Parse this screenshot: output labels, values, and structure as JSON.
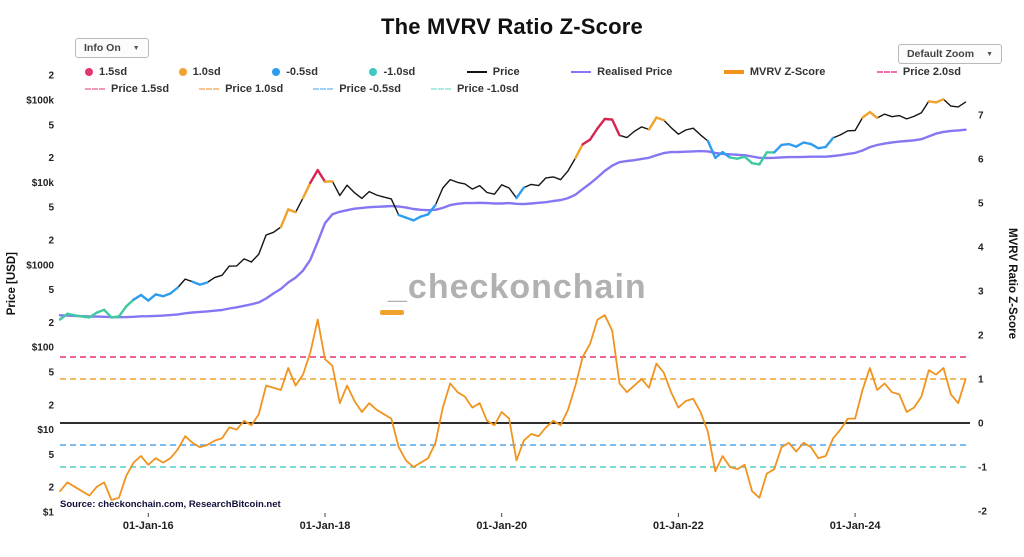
{
  "header": {
    "title": "The MVRV Ratio Z-Score",
    "info_dropdown": "Info On",
    "zoom_dropdown": "Default Zoom",
    "dropdown_arrow": "▼"
  },
  "axes": {
    "left_title": "Price [USD]",
    "right_title": "MVRV Ratio Z-Score",
    "left_ticks": [
      {
        "value": 200000,
        "label": "2"
      },
      {
        "value": 100000,
        "label": "$100k"
      },
      {
        "value": 50000,
        "label": "5"
      },
      {
        "value": 20000,
        "label": "2"
      },
      {
        "value": 10000,
        "label": "$10k"
      },
      {
        "value": 5000,
        "label": "5"
      },
      {
        "value": 2000,
        "label": "2"
      },
      {
        "value": 1000,
        "label": "$1000"
      },
      {
        "value": 500,
        "label": "5"
      },
      {
        "value": 200,
        "label": "2"
      },
      {
        "value": 100,
        "label": "$100"
      },
      {
        "value": 50,
        "label": "5"
      },
      {
        "value": 20,
        "label": "2"
      },
      {
        "value": 10,
        "label": "$10"
      },
      {
        "value": 5,
        "label": "5"
      },
      {
        "value": 2,
        "label": "2"
      },
      {
        "value": 1,
        "label": "$1"
      }
    ],
    "right_ticks": [
      {
        "value": 7,
        "label": "7"
      },
      {
        "value": 6,
        "label": "6"
      },
      {
        "value": 5,
        "label": "5"
      },
      {
        "value": 4,
        "label": "4"
      },
      {
        "value": 3,
        "label": "3"
      },
      {
        "value": 2,
        "label": "2"
      },
      {
        "value": 1,
        "label": "1"
      },
      {
        "value": 0,
        "label": "0"
      },
      {
        "value": -1,
        "label": "-1"
      },
      {
        "value": -2,
        "label": "-2"
      }
    ],
    "x_ticks": [
      {
        "t": 2016.0,
        "label": "01-Jan-16"
      },
      {
        "t": 2018.0,
        "label": "01-Jan-18"
      },
      {
        "t": 2020.0,
        "label": "01-Jan-20"
      },
      {
        "t": 2022.0,
        "label": "01-Jan-22"
      },
      {
        "t": 2024.0,
        "label": "01-Jan-24"
      }
    ]
  },
  "legend": {
    "row1": [
      {
        "label": "1.5sd",
        "swatch": "dot",
        "color": "#e5356b"
      },
      {
        "label": "1.0sd",
        "swatch": "dot",
        "color": "#f0a22e"
      },
      {
        "label": "-0.5sd",
        "swatch": "dot",
        "color": "#2e9df0"
      },
      {
        "label": "-1.0sd",
        "swatch": "dot",
        "color": "#40c9c0"
      },
      {
        "label": "Price",
        "swatch": "line",
        "color": "#141414"
      },
      {
        "label": "Realised Price",
        "swatch": "line",
        "color": "#8577f3"
      },
      {
        "label": "MVRV Z-Score",
        "swatch": "line-thick",
        "color": "#f0941f"
      },
      {
        "label": "Price 2.0sd",
        "swatch": "dashed",
        "color": "#f06eaa"
      }
    ],
    "row2": [
      {
        "label": "Price 1.5sd",
        "swatch": "dashed",
        "color": "#f59ab5"
      },
      {
        "label": "Price 1.0sd",
        "swatch": "dashed",
        "color": "#f7c58d"
      },
      {
        "label": "Price -0.5sd",
        "swatch": "dashed",
        "color": "#9fd0f7"
      },
      {
        "label": "Price -1.0sd",
        "swatch": "dashed",
        "color": "#aee8e0"
      }
    ]
  },
  "watermark": {
    "text": "_checkonchain",
    "accent_color": "#f0a22e"
  },
  "source": "Source: checkonchain.com, ResearchBitcoin.net",
  "chart_data": {
    "type": "line",
    "title": "The MVRV Ratio Z-Score",
    "x_start": 2015.0,
    "x_step_years": 0.0833333,
    "x_tick_labels": [
      "01-Jan-16",
      "01-Jan-18",
      "01-Jan-20",
      "01-Jan-22",
      "01-Jan-24"
    ],
    "price_axis": {
      "scale": "log",
      "range": [
        1,
        200000
      ],
      "label": "Price [USD]"
    },
    "z_axis": {
      "scale": "linear",
      "range": [
        -2.2,
        7.9
      ],
      "label": "MVRV Ratio Z-Score"
    },
    "threshold_lines": [
      {
        "z": 1.5,
        "color": "#e5356b",
        "dash": "6,4",
        "width": 1.6,
        "name": "1.5sd"
      },
      {
        "z": 1.0,
        "color": "#f0a22e",
        "dash": "6,4",
        "width": 1.6,
        "name": "1.0sd"
      },
      {
        "z": -0.5,
        "color": "#4da6f0",
        "dash": "6,4",
        "width": 1.6,
        "name": "-0.5sd"
      },
      {
        "z": -1.0,
        "color": "#4ed0c4",
        "dash": "6,4",
        "width": 1.6,
        "name": "-1.0sd"
      },
      {
        "z": 0,
        "color": "#111111",
        "dash": "",
        "width": 1.8,
        "name": "zero"
      }
    ],
    "overlay_colors": {
      "1.5sd": "#d6244f",
      "1.0sd": "#f0a22e",
      "-0.5sd": "#2e9df0",
      "-1.0sd": "#40c9a0"
    },
    "series": [
      {
        "name": "MVRV Z-Score",
        "axis": "z",
        "color": "#f0941f",
        "width": 1.8,
        "values": [
          -1.55,
          -1.35,
          -1.45,
          -1.55,
          -1.65,
          -1.45,
          -1.35,
          -1.75,
          -1.7,
          -1.2,
          -0.9,
          -0.75,
          -0.95,
          -0.8,
          -0.9,
          -0.8,
          -0.6,
          -0.3,
          -0.45,
          -0.55,
          -0.5,
          -0.4,
          -0.35,
          -0.1,
          -0.15,
          0.05,
          -0.05,
          0.2,
          0.85,
          0.8,
          0.75,
          1.25,
          0.85,
          1.1,
          1.6,
          2.35,
          1.45,
          1.3,
          0.45,
          0.85,
          0.5,
          0.25,
          0.45,
          0.3,
          0.2,
          0.1,
          -0.55,
          -0.85,
          -1.0,
          -0.9,
          -0.8,
          -0.45,
          0.35,
          0.9,
          0.7,
          0.6,
          0.35,
          0.45,
          0.05,
          -0.05,
          0.25,
          0.1,
          -0.85,
          -0.4,
          -0.25,
          -0.3,
          -0.1,
          0.05,
          -0.05,
          0.3,
          0.85,
          1.5,
          1.8,
          2.35,
          2.45,
          2.1,
          0.9,
          0.7,
          0.85,
          1.0,
          0.8,
          1.35,
          1.15,
          0.7,
          0.35,
          0.5,
          0.55,
          0.25,
          -0.2,
          -1.1,
          -0.75,
          -1.0,
          -1.05,
          -0.95,
          -1.55,
          -1.7,
          -1.15,
          -1.05,
          -0.55,
          -0.45,
          -0.65,
          -0.45,
          -0.55,
          -0.8,
          -0.75,
          -0.35,
          -0.15,
          0.1,
          0.1,
          0.75,
          1.25,
          0.75,
          0.9,
          0.7,
          0.65,
          0.25,
          0.35,
          0.6,
          1.2,
          1.1,
          1.25,
          0.65,
          0.45,
          1.0
        ]
      },
      {
        "name": "Realised Price",
        "axis": "price",
        "color": "#8577f3",
        "width": 2.4,
        "values": [
          244,
          242,
          240,
          238,
          236,
          235,
          234,
          232,
          231,
          232,
          234,
          237,
          238,
          240,
          242,
          245,
          250,
          258,
          264,
          268,
          272,
          277,
          283,
          295,
          305,
          318,
          332,
          350,
          390,
          450,
          510,
          610,
          700,
          850,
          1150,
          1900,
          3200,
          4100,
          4400,
          4600,
          4800,
          4900,
          5000,
          5050,
          5100,
          5150,
          5100,
          4950,
          4750,
          4650,
          4600,
          4650,
          4900,
          5300,
          5500,
          5600,
          5600,
          5650,
          5600,
          5550,
          5550,
          5600,
          5500,
          5450,
          5550,
          5650,
          5750,
          5950,
          6100,
          6450,
          7100,
          8300,
          9700,
          11500,
          13800,
          16000,
          17600,
          18200,
          18600,
          19300,
          19900,
          21300,
          22700,
          23300,
          23400,
          23600,
          23800,
          24000,
          23800,
          22800,
          22200,
          21900,
          21600,
          21400,
          20600,
          19900,
          19800,
          19900,
          20100,
          20300,
          20300,
          20400,
          20500,
          20500,
          20500,
          20900,
          21400,
          22200,
          22800,
          24400,
          26800,
          28400,
          29600,
          30600,
          31300,
          31800,
          32400,
          33400,
          36200,
          39100,
          41000,
          42200,
          42800,
          43600
        ]
      },
      {
        "name": "Price",
        "axis": "price",
        "color": "#141414",
        "width": 1.4,
        "values": [
          217,
          254,
          244,
          236,
          230,
          263,
          284,
          230,
          236,
          314,
          377,
          430,
          368,
          437,
          416,
          448,
          531,
          670,
          624,
          575,
          609,
          700,
          745,
          963,
          970,
          1180,
          1080,
          1350,
          2300,
          2480,
          2875,
          4700,
          4340,
          6450,
          9900,
          14100,
          10200,
          10300,
          6930,
          9240,
          7500,
          6400,
          7730,
          7030,
          6630,
          6300,
          4020,
          3740,
          3460,
          3850,
          4100,
          5320,
          8550,
          10800,
          10000,
          9600,
          8300,
          9150,
          7550,
          7190,
          9350,
          8550,
          6440,
          8650,
          9450,
          9140,
          11350,
          11650,
          10780,
          13800,
          19700,
          29000,
          33100,
          45200,
          58800,
          57750,
          37300,
          35000,
          41600,
          47100,
          43800,
          61300,
          57000,
          46200,
          38500,
          43200,
          45500,
          37700,
          31800,
          19900,
          23300,
          20050,
          19400,
          20500,
          17100,
          16550,
          23100,
          23100,
          28500,
          29200,
          27200,
          30500,
          29200,
          26000,
          26900,
          34650,
          37700,
          42250,
          42600,
          61200,
          71300,
          60600,
          67500,
          62700,
          64600,
          59000,
          63300,
          70200,
          96400,
          93400,
          102400,
          84350,
          82550,
          94200
        ]
      }
    ]
  }
}
